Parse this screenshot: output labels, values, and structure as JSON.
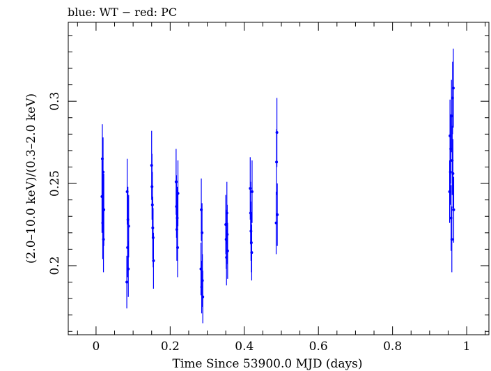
{
  "chart_data": {
    "type": "scatter",
    "title": "blue: WT − red: PC",
    "xlabel": "Time Since 53900.0 MJD (days)",
    "ylabel": "(2.0–10.0 keV)/(0.3–2.0 keV)",
    "xlim": [
      -0.075,
      1.06
    ],
    "ylim": [
      0.158,
      0.348
    ],
    "x_ticks": [
      0,
      0.2,
      0.4,
      0.6,
      0.8,
      1
    ],
    "x_tick_labels": [
      "0",
      "0.2",
      "0.4",
      "0.6",
      "0.8",
      "1"
    ],
    "y_ticks": [
      0.2,
      0.25,
      0.3
    ],
    "y_tick_labels": [
      "0.2",
      "0.25",
      "0.3"
    ],
    "grid": false,
    "colors": {
      "WT": "#0000ff",
      "PC": "#ff0000"
    },
    "series": [
      {
        "mode": "WT",
        "x": [
          0.016,
          0.017,
          0.018,
          0.019,
          0.02,
          0.021,
          0.083,
          0.084,
          0.085,
          0.086,
          0.087,
          0.088,
          0.15,
          0.151,
          0.152,
          0.153,
          0.154,
          0.155,
          0.216,
          0.217,
          0.218,
          0.219,
          0.22,
          0.221,
          0.283,
          0.284,
          0.285,
          0.286,
          0.287,
          0.288,
          0.35,
          0.351,
          0.352,
          0.353,
          0.354,
          0.355,
          0.416,
          0.417,
          0.418,
          0.419,
          0.42,
          0.421,
          0.486,
          0.487,
          0.488,
          0.489,
          0.954,
          0.955,
          0.956,
          0.957,
          0.958,
          0.959,
          0.96,
          0.961,
          0.962,
          0.963,
          0.964,
          0.965
        ],
        "y": [
          0.242,
          0.265,
          0.226,
          0.257,
          0.216,
          0.234,
          0.19,
          0.245,
          0.211,
          0.228,
          0.198,
          0.224,
          0.261,
          0.248,
          0.237,
          0.223,
          0.217,
          0.203,
          0.251,
          0.236,
          0.222,
          0.229,
          0.211,
          0.244,
          0.198,
          0.234,
          0.187,
          0.22,
          0.191,
          0.181,
          0.225,
          0.216,
          0.205,
          0.232,
          0.219,
          0.209,
          0.247,
          0.232,
          0.221,
          0.214,
          0.208,
          0.245,
          0.226,
          0.263,
          0.281,
          0.231,
          0.245,
          0.279,
          0.257,
          0.271,
          0.229,
          0.291,
          0.216,
          0.264,
          0.302,
          0.256,
          0.308,
          0.234
        ],
        "err": [
          0.022,
          0.021,
          0.022,
          0.021,
          0.02,
          0.022,
          0.016,
          0.02,
          0.018,
          0.02,
          0.017,
          0.019,
          0.021,
          0.02,
          0.02,
          0.019,
          0.018,
          0.017,
          0.02,
          0.019,
          0.019,
          0.019,
          0.018,
          0.02,
          0.016,
          0.019,
          0.016,
          0.018,
          0.016,
          0.016,
          0.018,
          0.018,
          0.017,
          0.019,
          0.018,
          0.017,
          0.019,
          0.019,
          0.018,
          0.018,
          0.017,
          0.019,
          0.019,
          0.02,
          0.021,
          0.019,
          0.019,
          0.022,
          0.02,
          0.021,
          0.02,
          0.022,
          0.02,
          0.021,
          0.022,
          0.021,
          0.024,
          0.02
        ]
      }
    ]
  }
}
